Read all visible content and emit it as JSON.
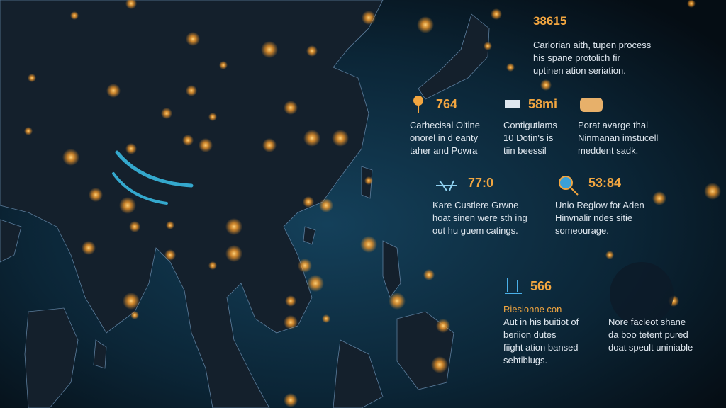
{
  "header": {
    "title": "38615",
    "lines": [
      "Carlorian aith, tupen process",
      "his spane protolich fir",
      "uptinen ation seriation."
    ]
  },
  "stats": [
    {
      "value": "764",
      "lines": [
        "Carhecisal Oltine",
        "onorel in d eanty",
        "taher and Powra"
      ]
    },
    {
      "value": "58mi",
      "lines": [
        "Contigutlams",
        "10 Dotin's is",
        "tiin beessil"
      ]
    },
    {
      "lines": [
        "Porat avarge thal",
        "Ninmanan imstucell",
        "meddent sadk."
      ]
    },
    {
      "value": "77:0",
      "lines": [
        "Kare Custlere Grwne",
        "hoat sinen were sth ing",
        "out hu guem catings."
      ]
    },
    {
      "value": "53:84",
      "lines": [
        "Unio Reglow for Aden",
        "Hinvnalir ndes sitie",
        "someourage."
      ]
    },
    {
      "value": "566",
      "lines": [
        "Riesionne con",
        "Aut in his buitiot of",
        "beriion dutes",
        "fiight ation bansed",
        "sehtiblugs."
      ]
    },
    {
      "lines": [
        "Nore facleot shane",
        "da boo tetent pured",
        "doat speult uniniable"
      ]
    }
  ]
}
